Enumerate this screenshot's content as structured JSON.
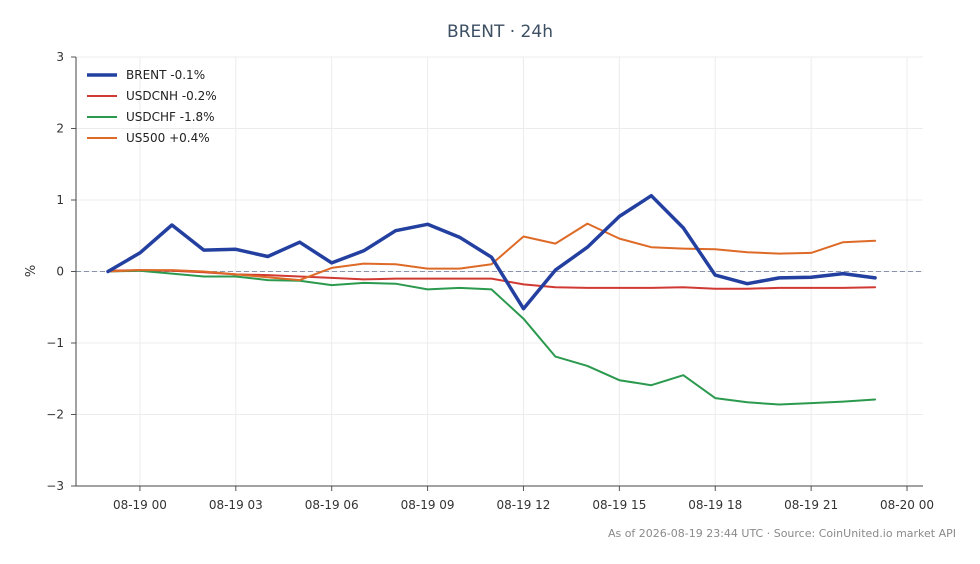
{
  "chart_data": {
    "type": "line",
    "title": "BRENT · 24h",
    "ylabel": "%",
    "xlabel": "",
    "ylim": [
      -3,
      3
    ],
    "yticks": [
      -3,
      -2,
      -1,
      0,
      1,
      2,
      3
    ],
    "ytick_labels": [
      "−3",
      "−2",
      "−1",
      "0",
      "1",
      "2",
      "3"
    ],
    "xlim": [
      "2026-08-18 22:00",
      "2026-08-20 00:30"
    ],
    "xticks": [
      "2026-08-19 00:00",
      "2026-08-19 03:00",
      "2026-08-19 06:00",
      "2026-08-19 09:00",
      "2026-08-19 12:00",
      "2026-08-19 15:00",
      "2026-08-19 18:00",
      "2026-08-19 21:00",
      "2026-08-20 00:00"
    ],
    "xtick_labels": [
      "08-19 00",
      "08-19 03",
      "08-19 06",
      "08-19 09",
      "08-19 12",
      "08-19 15",
      "08-19 18",
      "08-19 21",
      "08-20 00"
    ],
    "grid": true,
    "zero_line": true,
    "legend_position": "top-left",
    "x": [
      "2026-08-18 23:00",
      "2026-08-19 00:00",
      "2026-08-19 01:00",
      "2026-08-19 02:00",
      "2026-08-19 03:00",
      "2026-08-19 04:00",
      "2026-08-19 05:00",
      "2026-08-19 06:00",
      "2026-08-19 07:00",
      "2026-08-19 08:00",
      "2026-08-19 09:00",
      "2026-08-19 10:00",
      "2026-08-19 11:00",
      "2026-08-19 12:00",
      "2026-08-19 13:00",
      "2026-08-19 14:00",
      "2026-08-19 15:00",
      "2026-08-19 16:00",
      "2026-08-19 17:00",
      "2026-08-19 18:00",
      "2026-08-19 19:00",
      "2026-08-19 20:00",
      "2026-08-19 21:00",
      "2026-08-19 22:00",
      "2026-08-19 23:00"
    ],
    "series": [
      {
        "name": "BRENT -0.1%",
        "color": "#2340a0",
        "width": 3.5,
        "values": [
          0.0,
          0.26,
          0.65,
          0.3,
          0.31,
          0.21,
          0.41,
          0.12,
          0.29,
          0.57,
          0.66,
          0.48,
          0.2,
          -0.52,
          0.02,
          0.34,
          0.77,
          1.06,
          0.61,
          -0.05,
          -0.17,
          -0.09,
          -0.08,
          -0.03,
          -0.09
        ]
      },
      {
        "name": "USDCNH -0.2%",
        "color": "#d03a32",
        "width": 2,
        "values": [
          0.01,
          0.02,
          0.01,
          -0.01,
          -0.04,
          -0.05,
          -0.07,
          -0.09,
          -0.11,
          -0.1,
          -0.1,
          -0.1,
          -0.1,
          -0.18,
          -0.22,
          -0.23,
          -0.23,
          -0.23,
          -0.22,
          -0.24,
          -0.24,
          -0.23,
          -0.23,
          -0.23,
          -0.22
        ]
      },
      {
        "name": "USDCHF -1.8%",
        "color": "#2b9a4e",
        "width": 2,
        "values": [
          0.0,
          0.01,
          -0.03,
          -0.07,
          -0.07,
          -0.12,
          -0.13,
          -0.19,
          -0.16,
          -0.17,
          -0.25,
          -0.23,
          -0.25,
          -0.66,
          -1.19,
          -1.32,
          -1.52,
          -1.59,
          -1.45,
          -1.77,
          -1.83,
          -1.86,
          -1.84,
          -1.82,
          -1.79
        ]
      },
      {
        "name": "US500 +0.4%",
        "color": "#de6a27",
        "width": 2,
        "values": [
          0.0,
          0.02,
          0.02,
          0.0,
          -0.04,
          -0.08,
          -0.12,
          0.05,
          0.11,
          0.1,
          0.04,
          0.04,
          0.1,
          0.49,
          0.39,
          0.67,
          0.46,
          0.34,
          0.32,
          0.31,
          0.27,
          0.25,
          0.26,
          0.41,
          0.43
        ]
      }
    ]
  },
  "footer": "As of 2026-08-19 23:44 UTC · Source: CoinUnited.io market API"
}
